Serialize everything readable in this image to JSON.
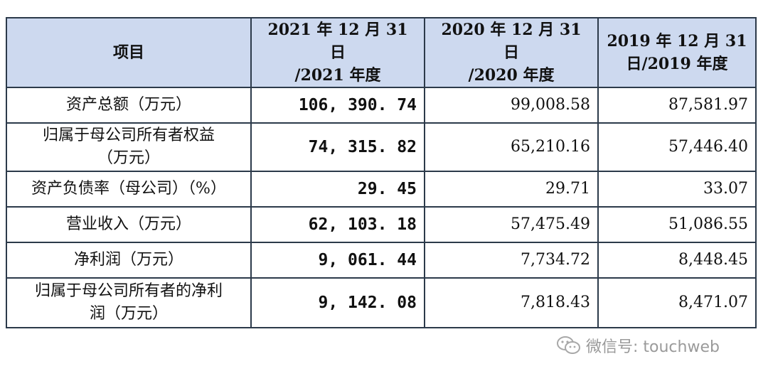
{
  "table": {
    "headers": [
      {
        "line1": "项目",
        "line2": ""
      },
      {
        "line1": "2021 年 12 月 31 日",
        "line2": "/2021 年度"
      },
      {
        "line1": "2020 年 12 月 31 日",
        "line2": "/2020 年度"
      },
      {
        "line1": "2019 年 12 月 31",
        "line2": "日/2019 年度"
      }
    ],
    "rows": [
      {
        "label1": "资产总额（万元）",
        "label2": "",
        "v2021": "106, 390. 74",
        "v2020": "99,008.58",
        "v2019": "87,581.97"
      },
      {
        "label1": "归属于母公司所有者权益",
        "label2": "（万元）",
        "v2021": "74, 315. 82",
        "v2020": "65,210.16",
        "v2019": "57,446.40"
      },
      {
        "label1": "资产负债率（母公司）（%）",
        "label2": "",
        "v2021": "29. 45",
        "v2020": "29.71",
        "v2019": "33.07"
      },
      {
        "label1": "营业收入（万元）",
        "label2": "",
        "v2021": "62, 103. 18",
        "v2020": "57,475.49",
        "v2019": "51,086.55"
      },
      {
        "label1": "净利润（万元）",
        "label2": "",
        "v2021": "9, 061. 44",
        "v2020": "7,734.72",
        "v2019": "8,448.45"
      },
      {
        "label1": "归属于母公司所有者的净利",
        "label2": "润（万元）",
        "v2021": "9, 142. 08",
        "v2020": "7,818.43",
        "v2019": "8,471.07"
      }
    ]
  },
  "watermark": {
    "text": "微信号: touchweb",
    "icon": "wechat-icon"
  }
}
